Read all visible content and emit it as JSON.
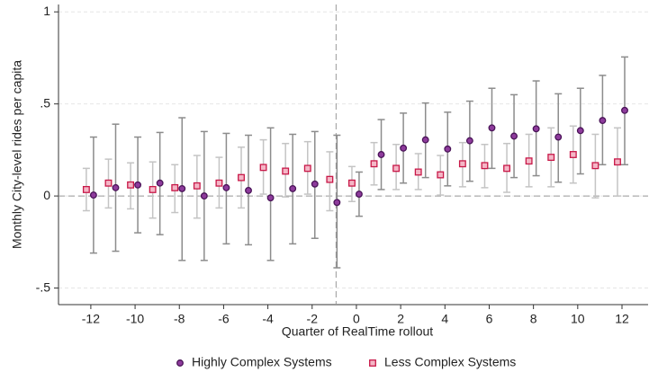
{
  "chart_data": {
    "type": "errorbar",
    "y_label": "Monthly City-level rides per capita",
    "x_label": "Quarter of RealTime rollout",
    "x": [
      -12,
      -11,
      -10,
      -9,
      -8,
      -7,
      -6,
      -5,
      -4,
      -3,
      -2,
      -1,
      0,
      1,
      2,
      3,
      4,
      5,
      6,
      7,
      8,
      9,
      10,
      11,
      12
    ],
    "series": [
      {
        "name": "Highly Complex Systems",
        "color": "#8e3b9c",
        "edge": "#4a1458",
        "ci_color": "#8c8c8c",
        "marker": "circle",
        "values": [
          0.005,
          0.045,
          0.06,
          0.07,
          0.04,
          0.0,
          0.045,
          0.03,
          -0.01,
          0.04,
          0.065,
          -0.035,
          0.01,
          0.225,
          0.26,
          0.305,
          0.255,
          0.3,
          0.37,
          0.325,
          0.365,
          0.32,
          0.355,
          0.41,
          0.465
        ],
        "lower": [
          -0.31,
          -0.3,
          -0.2,
          -0.21,
          -0.35,
          -0.35,
          -0.26,
          -0.265,
          -0.35,
          -0.26,
          -0.23,
          -0.39,
          -0.11,
          0.035,
          0.07,
          0.1,
          0.055,
          0.08,
          0.15,
          0.1,
          0.11,
          0.075,
          0.12,
          0.17,
          0.17
        ],
        "upper": [
          0.32,
          0.39,
          0.32,
          0.345,
          0.425,
          0.35,
          0.34,
          0.33,
          0.37,
          0.335,
          0.35,
          0.33,
          0.13,
          0.415,
          0.45,
          0.505,
          0.455,
          0.515,
          0.585,
          0.55,
          0.625,
          0.555,
          0.585,
          0.655,
          0.755
        ]
      },
      {
        "name": "Less Complex Systems",
        "color": "#f4b6c6",
        "edge": "#c81848",
        "ci_color": "#c4c4c4",
        "marker": "square",
        "values": [
          0.035,
          0.07,
          0.06,
          0.035,
          0.045,
          0.055,
          0.07,
          0.1,
          0.155,
          0.135,
          0.15,
          0.09,
          0.07,
          0.175,
          0.15,
          0.13,
          0.115,
          0.175,
          0.165,
          0.15,
          0.19,
          0.21,
          0.225,
          0.165,
          0.185
        ],
        "lower": [
          -0.08,
          -0.065,
          -0.07,
          -0.12,
          -0.09,
          -0.12,
          -0.065,
          -0.065,
          0.01,
          -0.005,
          0.01,
          -0.08,
          -0.03,
          0.06,
          0.035,
          0.035,
          0.005,
          0.05,
          0.045,
          0.02,
          0.05,
          0.05,
          0.07,
          -0.01,
          0.0
        ],
        "upper": [
          0.15,
          0.2,
          0.18,
          0.185,
          0.17,
          0.22,
          0.21,
          0.265,
          0.305,
          0.285,
          0.295,
          0.24,
          0.16,
          0.29,
          0.28,
          0.23,
          0.22,
          0.29,
          0.28,
          0.285,
          0.335,
          0.37,
          0.38,
          0.335,
          0.37
        ]
      }
    ],
    "xlim": [
      -13.46,
      13.18
    ],
    "ylim": [
      -0.59,
      1.04
    ],
    "xticks": [
      -12,
      -10,
      -8,
      -6,
      -4,
      -2,
      0,
      2,
      4,
      6,
      8,
      10,
      12
    ],
    "yticks": [
      {
        "value": -0.5,
        "label": "-.5"
      },
      0,
      {
        "value": 0.5,
        "label": ".5"
      },
      1
    ],
    "grid": true,
    "reference_lines": {
      "x": -1,
      "y": 0
    },
    "legend": "bottom"
  }
}
